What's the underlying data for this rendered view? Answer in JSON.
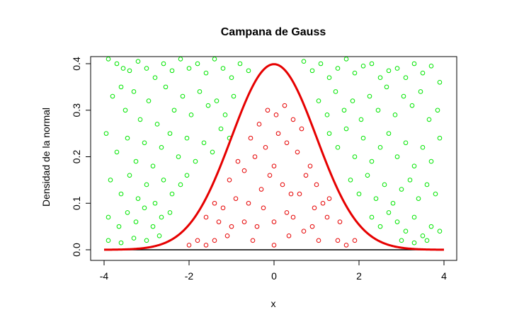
{
  "chart_data": {
    "type": "scatter",
    "title": "Campana de Gauss",
    "xlabel": "x",
    "ylabel": "Densidad de la normal",
    "xlim": [
      -4,
      4
    ],
    "ylim": [
      0,
      0.4
    ],
    "x_ticks": [
      -4,
      -2,
      0,
      2,
      4
    ],
    "y_ticks": [
      0.0,
      0.1,
      0.2,
      0.3,
      0.4
    ],
    "x_tick_labels": [
      "-4",
      "-2",
      "0",
      "2",
      "4"
    ],
    "y_tick_labels": [
      "0.0",
      "0.1",
      "0.2",
      "0.3",
      "0.4"
    ],
    "curve": {
      "function": "standard normal density",
      "mean": 0,
      "sd": 1,
      "color": "#e60000"
    },
    "colors": {
      "above_curve": "#00e600",
      "below_curve": "#e60000",
      "baseline": "#000000"
    },
    "series": [
      {
        "color": "#00e600",
        "points": [
          [
            -3.9,
            0.41
          ],
          [
            -3.7,
            0.4
          ],
          [
            -3.55,
            0.39
          ],
          [
            -3.4,
            0.385
          ],
          [
            -3.2,
            0.405
          ],
          [
            -3.0,
            0.39
          ],
          [
            -2.8,
            0.37
          ],
          [
            -2.6,
            0.4
          ],
          [
            -2.4,
            0.385
          ],
          [
            -2.2,
            0.41
          ],
          [
            -2.0,
            0.39
          ],
          [
            -1.8,
            0.4
          ],
          [
            -1.6,
            0.38
          ],
          [
            -1.4,
            0.41
          ],
          [
            -1.2,
            0.39
          ],
          [
            -1.0,
            0.37
          ],
          [
            -0.8,
            0.4
          ],
          [
            -0.6,
            0.385
          ],
          [
            0.7,
            0.405
          ],
          [
            0.9,
            0.385
          ],
          [
            1.1,
            0.4
          ],
          [
            1.3,
            0.37
          ],
          [
            1.5,
            0.39
          ],
          [
            1.7,
            0.41
          ],
          [
            1.9,
            0.38
          ],
          [
            2.1,
            0.395
          ],
          [
            2.3,
            0.4
          ],
          [
            2.5,
            0.37
          ],
          [
            2.7,
            0.385
          ],
          [
            2.9,
            0.39
          ],
          [
            3.1,
            0.37
          ],
          [
            3.3,
            0.4
          ],
          [
            3.5,
            0.38
          ],
          [
            3.7,
            0.395
          ],
          [
            3.9,
            0.36
          ],
          [
            -3.8,
            0.33
          ],
          [
            -3.6,
            0.35
          ],
          [
            -3.5,
            0.3
          ],
          [
            -3.3,
            0.34
          ],
          [
            -3.15,
            0.28
          ],
          [
            -2.95,
            0.32
          ],
          [
            -2.75,
            0.27
          ],
          [
            -2.55,
            0.35
          ],
          [
            -2.35,
            0.3
          ],
          [
            -2.15,
            0.33
          ],
          [
            -1.95,
            0.29
          ],
          [
            -1.75,
            0.34
          ],
          [
            -1.55,
            0.31
          ],
          [
            -1.35,
            0.32
          ],
          [
            -1.15,
            0.29
          ],
          [
            -0.95,
            0.33
          ],
          [
            1.05,
            0.32
          ],
          [
            1.25,
            0.29
          ],
          [
            1.45,
            0.34
          ],
          [
            1.65,
            0.3
          ],
          [
            1.85,
            0.32
          ],
          [
            2.05,
            0.28
          ],
          [
            2.25,
            0.33
          ],
          [
            2.45,
            0.3
          ],
          [
            2.65,
            0.35
          ],
          [
            2.85,
            0.29
          ],
          [
            3.05,
            0.33
          ],
          [
            3.25,
            0.31
          ],
          [
            3.45,
            0.34
          ],
          [
            3.65,
            0.28
          ],
          [
            3.85,
            0.3
          ],
          [
            -3.95,
            0.25
          ],
          [
            -3.7,
            0.21
          ],
          [
            -3.45,
            0.24
          ],
          [
            -3.25,
            0.19
          ],
          [
            -3.05,
            0.23
          ],
          [
            -2.85,
            0.18
          ],
          [
            -2.65,
            0.22
          ],
          [
            -2.45,
            0.25
          ],
          [
            -2.25,
            0.2
          ],
          [
            -2.05,
            0.24
          ],
          [
            -1.85,
            0.19
          ],
          [
            -1.65,
            0.23
          ],
          [
            -1.45,
            0.21
          ],
          [
            -1.25,
            0.26
          ],
          [
            -1.05,
            0.24
          ],
          [
            1.3,
            0.25
          ],
          [
            1.5,
            0.22
          ],
          [
            1.7,
            0.26
          ],
          [
            1.9,
            0.2
          ],
          [
            2.1,
            0.24
          ],
          [
            2.3,
            0.19
          ],
          [
            2.5,
            0.22
          ],
          [
            2.7,
            0.25
          ],
          [
            2.9,
            0.2
          ],
          [
            3.1,
            0.23
          ],
          [
            3.3,
            0.18
          ],
          [
            3.5,
            0.22
          ],
          [
            3.7,
            0.19
          ],
          [
            3.9,
            0.24
          ],
          [
            -3.85,
            0.15
          ],
          [
            -3.6,
            0.12
          ],
          [
            -3.4,
            0.16
          ],
          [
            -3.2,
            0.11
          ],
          [
            -3.0,
            0.14
          ],
          [
            -2.8,
            0.1
          ],
          [
            -2.6,
            0.15
          ],
          [
            -2.4,
            0.12
          ],
          [
            -2.2,
            0.14
          ],
          [
            -2.05,
            0.16
          ],
          [
            1.8,
            0.15
          ],
          [
            2.0,
            0.12
          ],
          [
            2.2,
            0.16
          ],
          [
            2.4,
            0.11
          ],
          [
            2.6,
            0.14
          ],
          [
            2.8,
            0.1
          ],
          [
            3.0,
            0.13
          ],
          [
            3.2,
            0.15
          ],
          [
            3.4,
            0.11
          ],
          [
            3.6,
            0.14
          ],
          [
            3.8,
            0.12
          ],
          [
            -3.9,
            0.07
          ],
          [
            -3.65,
            0.05
          ],
          [
            -3.45,
            0.08
          ],
          [
            -3.25,
            0.06
          ],
          [
            -3.05,
            0.09
          ],
          [
            -2.85,
            0.05
          ],
          [
            -2.65,
            0.07
          ],
          [
            -2.45,
            0.08
          ],
          [
            2.3,
            0.07
          ],
          [
            2.5,
            0.05
          ],
          [
            2.7,
            0.08
          ],
          [
            2.9,
            0.06
          ],
          [
            3.1,
            0.04
          ],
          [
            3.3,
            0.07
          ],
          [
            3.5,
            0.03
          ],
          [
            3.7,
            0.05
          ],
          [
            3.9,
            0.04
          ],
          [
            -3.9,
            0.02
          ],
          [
            -3.6,
            0.015
          ],
          [
            -3.3,
            0.025
          ],
          [
            -3.0,
            0.02
          ],
          [
            -2.7,
            0.03
          ],
          [
            3.0,
            0.02
          ],
          [
            3.3,
            0.015
          ],
          [
            3.6,
            0.02
          ]
        ]
      },
      {
        "color": "#e60000",
        "points": [
          [
            -0.15,
            0.3
          ],
          [
            0.05,
            0.29
          ],
          [
            0.25,
            0.31
          ],
          [
            0.45,
            0.28
          ],
          [
            -0.35,
            0.27
          ],
          [
            0.65,
            0.26
          ],
          [
            -0.55,
            0.24
          ],
          [
            0.1,
            0.25
          ],
          [
            -0.2,
            0.22
          ],
          [
            0.3,
            0.23
          ],
          [
            0.55,
            0.21
          ],
          [
            -0.45,
            0.2
          ],
          [
            -0.85,
            0.19
          ],
          [
            0.85,
            0.18
          ],
          [
            -0.7,
            0.17
          ],
          [
            0.75,
            0.16
          ],
          [
            -1.05,
            0.15
          ],
          [
            1.0,
            0.14
          ],
          [
            0.0,
            0.18
          ],
          [
            -0.1,
            0.16
          ],
          [
            0.2,
            0.14
          ],
          [
            -0.3,
            0.13
          ],
          [
            0.4,
            0.12
          ],
          [
            -1.4,
            0.1
          ],
          [
            1.3,
            0.11
          ],
          [
            -1.2,
            0.09
          ],
          [
            1.15,
            0.1
          ],
          [
            -0.9,
            0.11
          ],
          [
            0.95,
            0.09
          ],
          [
            -0.6,
            0.1
          ],
          [
            0.6,
            0.12
          ],
          [
            -0.25,
            0.09
          ],
          [
            0.3,
            0.08
          ],
          [
            -1.6,
            0.07
          ],
          [
            1.55,
            0.06
          ],
          [
            -1.3,
            0.06
          ],
          [
            1.25,
            0.07
          ],
          [
            -1.0,
            0.05
          ],
          [
            0.9,
            0.05
          ],
          [
            -0.7,
            0.06
          ],
          [
            0.7,
            0.04
          ],
          [
            -0.4,
            0.05
          ],
          [
            0.45,
            0.07
          ],
          [
            0.0,
            0.06
          ],
          [
            -2.0,
            0.01
          ],
          [
            -1.8,
            0.02
          ],
          [
            -1.6,
            0.01
          ],
          [
            -1.4,
            0.02
          ],
          [
            1.5,
            0.02
          ],
          [
            1.7,
            0.01
          ],
          [
            1.9,
            0.02
          ],
          [
            -0.5,
            0.02
          ],
          [
            0.35,
            0.03
          ],
          [
            1.05,
            0.02
          ],
          [
            0.0,
            0.01
          ],
          [
            -1.1,
            0.03
          ]
        ]
      }
    ]
  }
}
